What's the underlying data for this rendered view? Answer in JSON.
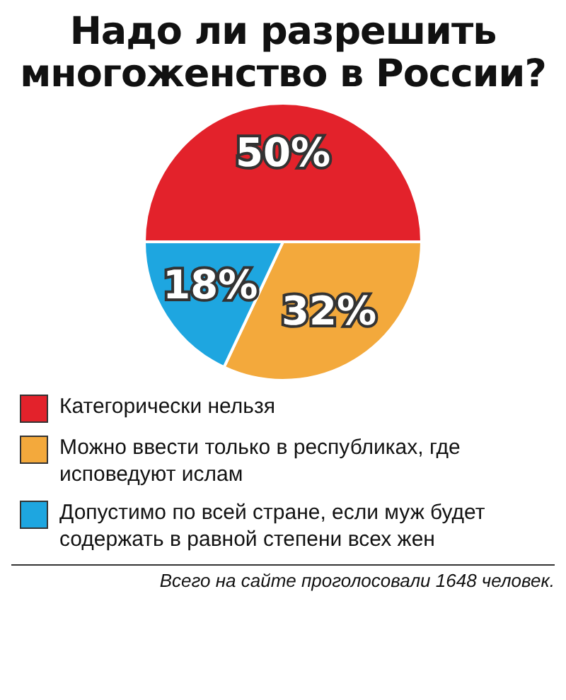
{
  "chart_data": {
    "type": "pie",
    "title": "Надо ли разрешить многоженство в России?",
    "categories": [
      "Категорически нельзя",
      "Можно ввести только в республиках, где исповедуют ислам",
      "Допустимо по всей стране, если муж будет содержать в равной степени всех жен"
    ],
    "values": [
      50,
      32,
      18
    ],
    "colors": [
      "#e3222b",
      "#f3a93c",
      "#1ea6e0"
    ],
    "value_labels": [
      "50%",
      "32%",
      "18%"
    ],
    "legend": "bottom",
    "annotations": [
      "Всего на сайте проголосовали 1648 человек."
    ]
  }
}
